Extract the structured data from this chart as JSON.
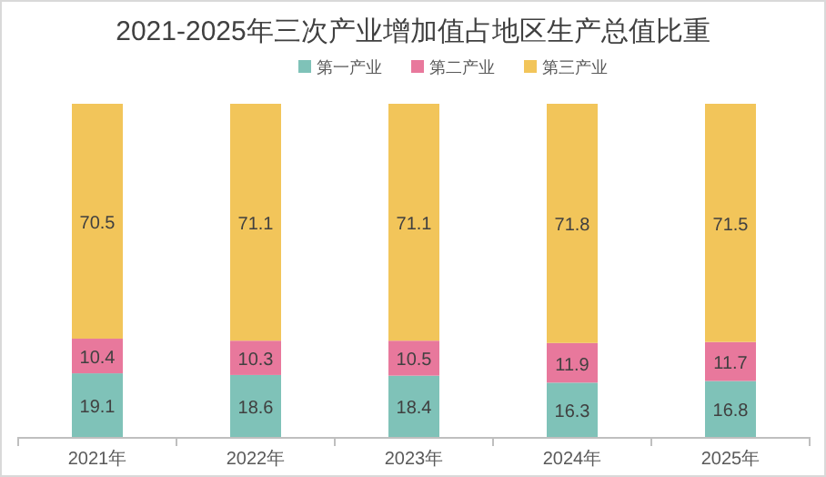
{
  "chart_data": {
    "type": "bar",
    "title": "2021-2025年三次产业增加值占地区生产总值比重",
    "categories": [
      "2021年",
      "2022年",
      "2023年",
      "2024年",
      "2025年"
    ],
    "stacked": true,
    "data_labels": true,
    "legend": "top",
    "series": [
      {
        "name": "第一产业",
        "color": "#7fc2b8",
        "values": [
          19.1,
          18.6,
          18.4,
          16.3,
          16.8
        ]
      },
      {
        "name": "第二产业",
        "color": "#e8789c",
        "values": [
          10.4,
          10.3,
          10.5,
          11.9,
          11.7
        ]
      },
      {
        "name": "第三产业",
        "color": "#f2c55a",
        "values": [
          70.5,
          71.1,
          71.1,
          71.8,
          71.5
        ]
      }
    ]
  }
}
